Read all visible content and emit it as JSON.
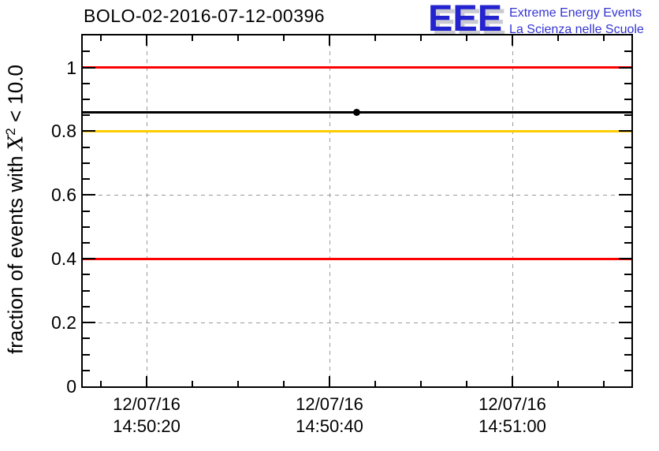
{
  "header": {
    "title": "BOLO-02-2016-07-12-00396"
  },
  "logo": {
    "acronym": "EEE",
    "line1": "Extreme Energy Events",
    "line2": "La Scienza nelle Scuole",
    "accent_blue": "#2323cf",
    "text_blue": "#3434d4",
    "shadow_gray": "#c9c9d2"
  },
  "chart_data": {
    "type": "line",
    "title": "BOLO-02-2016-07-12-00396",
    "ylabel": "fraction of events with X^2 < 10.0",
    "ylabel_parts": {
      "prefix": "fraction of events with ",
      "symbol": "X",
      "sup": "2",
      "suffix": " < 10.0"
    },
    "xlabel": "",
    "ylim": [
      0,
      1.1
    ],
    "grid": true,
    "grid_color": "#9a9a9a",
    "y_axis": {
      "minor_step": 0.05,
      "ticks": [
        {
          "label": "1",
          "value": 1.0
        },
        {
          "label": "0.8",
          "value": 0.8
        },
        {
          "label": "0.6",
          "value": 0.6
        },
        {
          "label": "0.4",
          "value": 0.4
        },
        {
          "label": "0.2",
          "value": 0.2
        },
        {
          "label": "0",
          "value": 0.0
        }
      ]
    },
    "x_axis": {
      "minor_step_seconds": 5,
      "ticks": [
        {
          "date": "12/07/16",
          "time": "14:50:20"
        },
        {
          "date": "12/07/16",
          "time": "14:50:40"
        },
        {
          "date": "12/07/16",
          "time": "14:51:00"
        }
      ]
    },
    "reference_lines": [
      {
        "name": "max-line",
        "value": 1.0,
        "color": "#ff0000"
      },
      {
        "name": "threshold-line",
        "value": 0.8,
        "color": "#ffcc00"
      },
      {
        "name": "min-line",
        "value": 0.4,
        "color": "#ff0000"
      }
    ],
    "series": [
      {
        "name": "fraction-of-events",
        "color": "#000000",
        "line_value": 0.86,
        "points": [
          {
            "time": "14:50:43",
            "value": 0.86
          }
        ]
      }
    ]
  }
}
